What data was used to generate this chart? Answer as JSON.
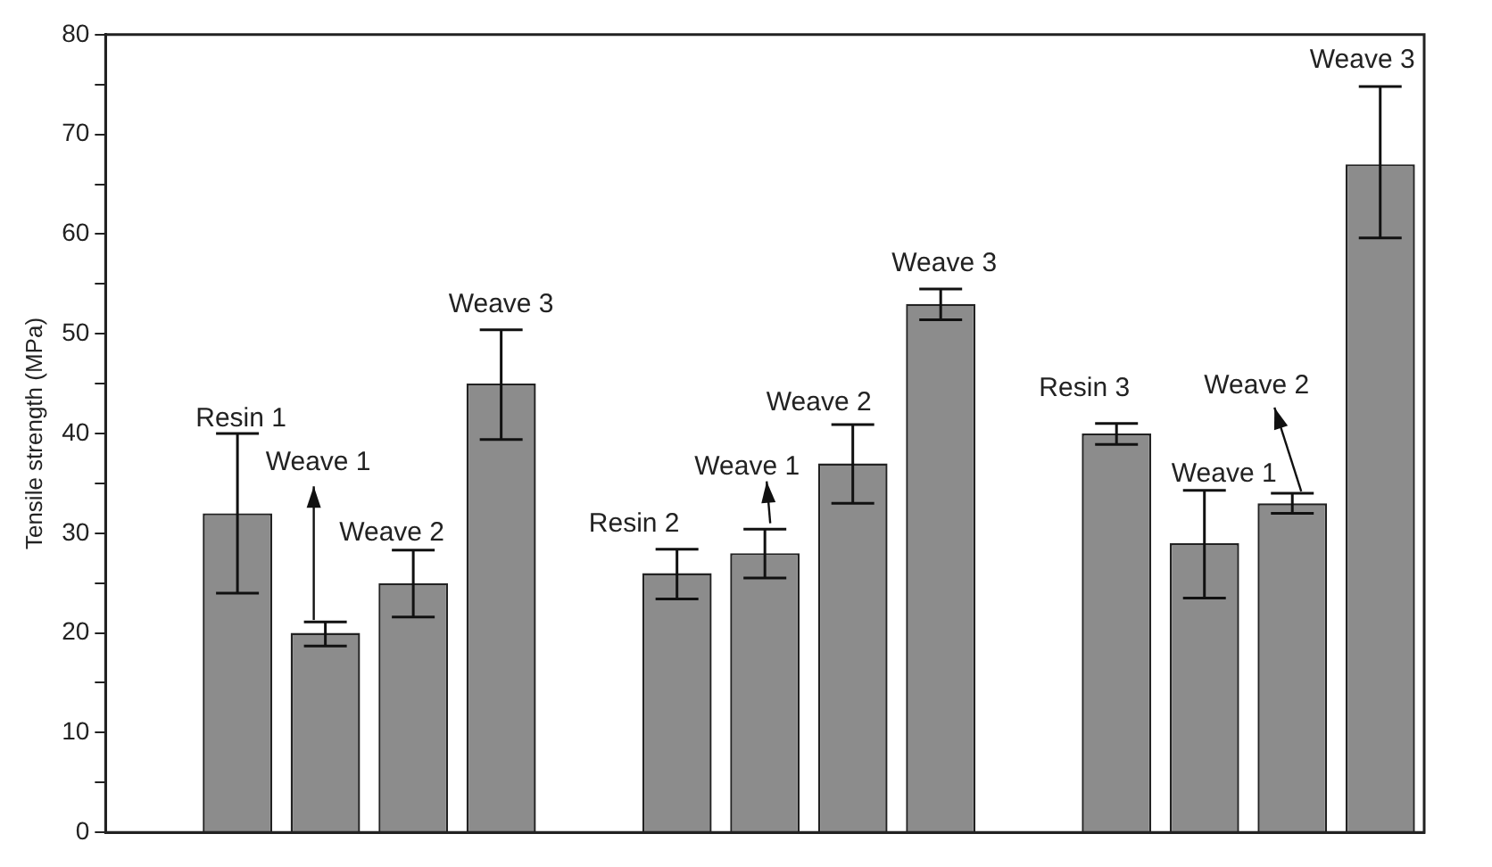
{
  "chart_data": {
    "type": "bar",
    "ylabel": "Tensile strength (MPa)",
    "categories": [
      null,
      null,
      null,
      null,
      null,
      null,
      null,
      null,
      null,
      null,
      null,
      null,
      null,
      null,
      null
    ],
    "series": [
      {
        "color": "#8c8c8c",
        "values": [
          null,
          32,
          20,
          25,
          45,
          null,
          26,
          28,
          37,
          53,
          null,
          40,
          29,
          33,
          67
        ],
        "errors": [
          null,
          [
            24,
            40
          ],
          [
            18.7,
            21.1
          ],
          [
            21.6,
            28.3
          ],
          [
            39.4,
            50.4
          ],
          null,
          [
            23.4,
            28.4
          ],
          [
            25.5,
            30.4
          ],
          [
            33,
            40.9
          ],
          [
            51.4,
            54.5
          ],
          null,
          [
            38.9,
            41
          ],
          [
            23.5,
            34.3
          ],
          [
            32,
            34
          ],
          [
            59.6,
            74.8
          ]
        ]
      }
    ],
    "annotations": [
      "Resin 1",
      "Weave 1",
      "Weave 2",
      "Weave 3",
      "Resin 2",
      "Weave 1",
      "Weave 2",
      "Weave 3",
      "Resin 3",
      "Weave 1",
      "Weave 2",
      "Weave 3"
    ],
    "ylim": [
      0,
      80
    ],
    "yticks": [
      0,
      {
        "value": 5,
        "label": null
      },
      10,
      {
        "value": 15,
        "label": null
      },
      20,
      {
        "value": 25,
        "label": null
      },
      30,
      {
        "value": 35,
        "label": null
      },
      40,
      {
        "value": 45,
        "label": null
      },
      50,
      {
        "value": 55,
        "label": null
      },
      60,
      {
        "value": 65,
        "label": null
      },
      70,
      {
        "value": 75,
        "label": null
      },
      80
    ],
    "tick_labels": "y",
    "grid": false,
    "legend": false
  }
}
